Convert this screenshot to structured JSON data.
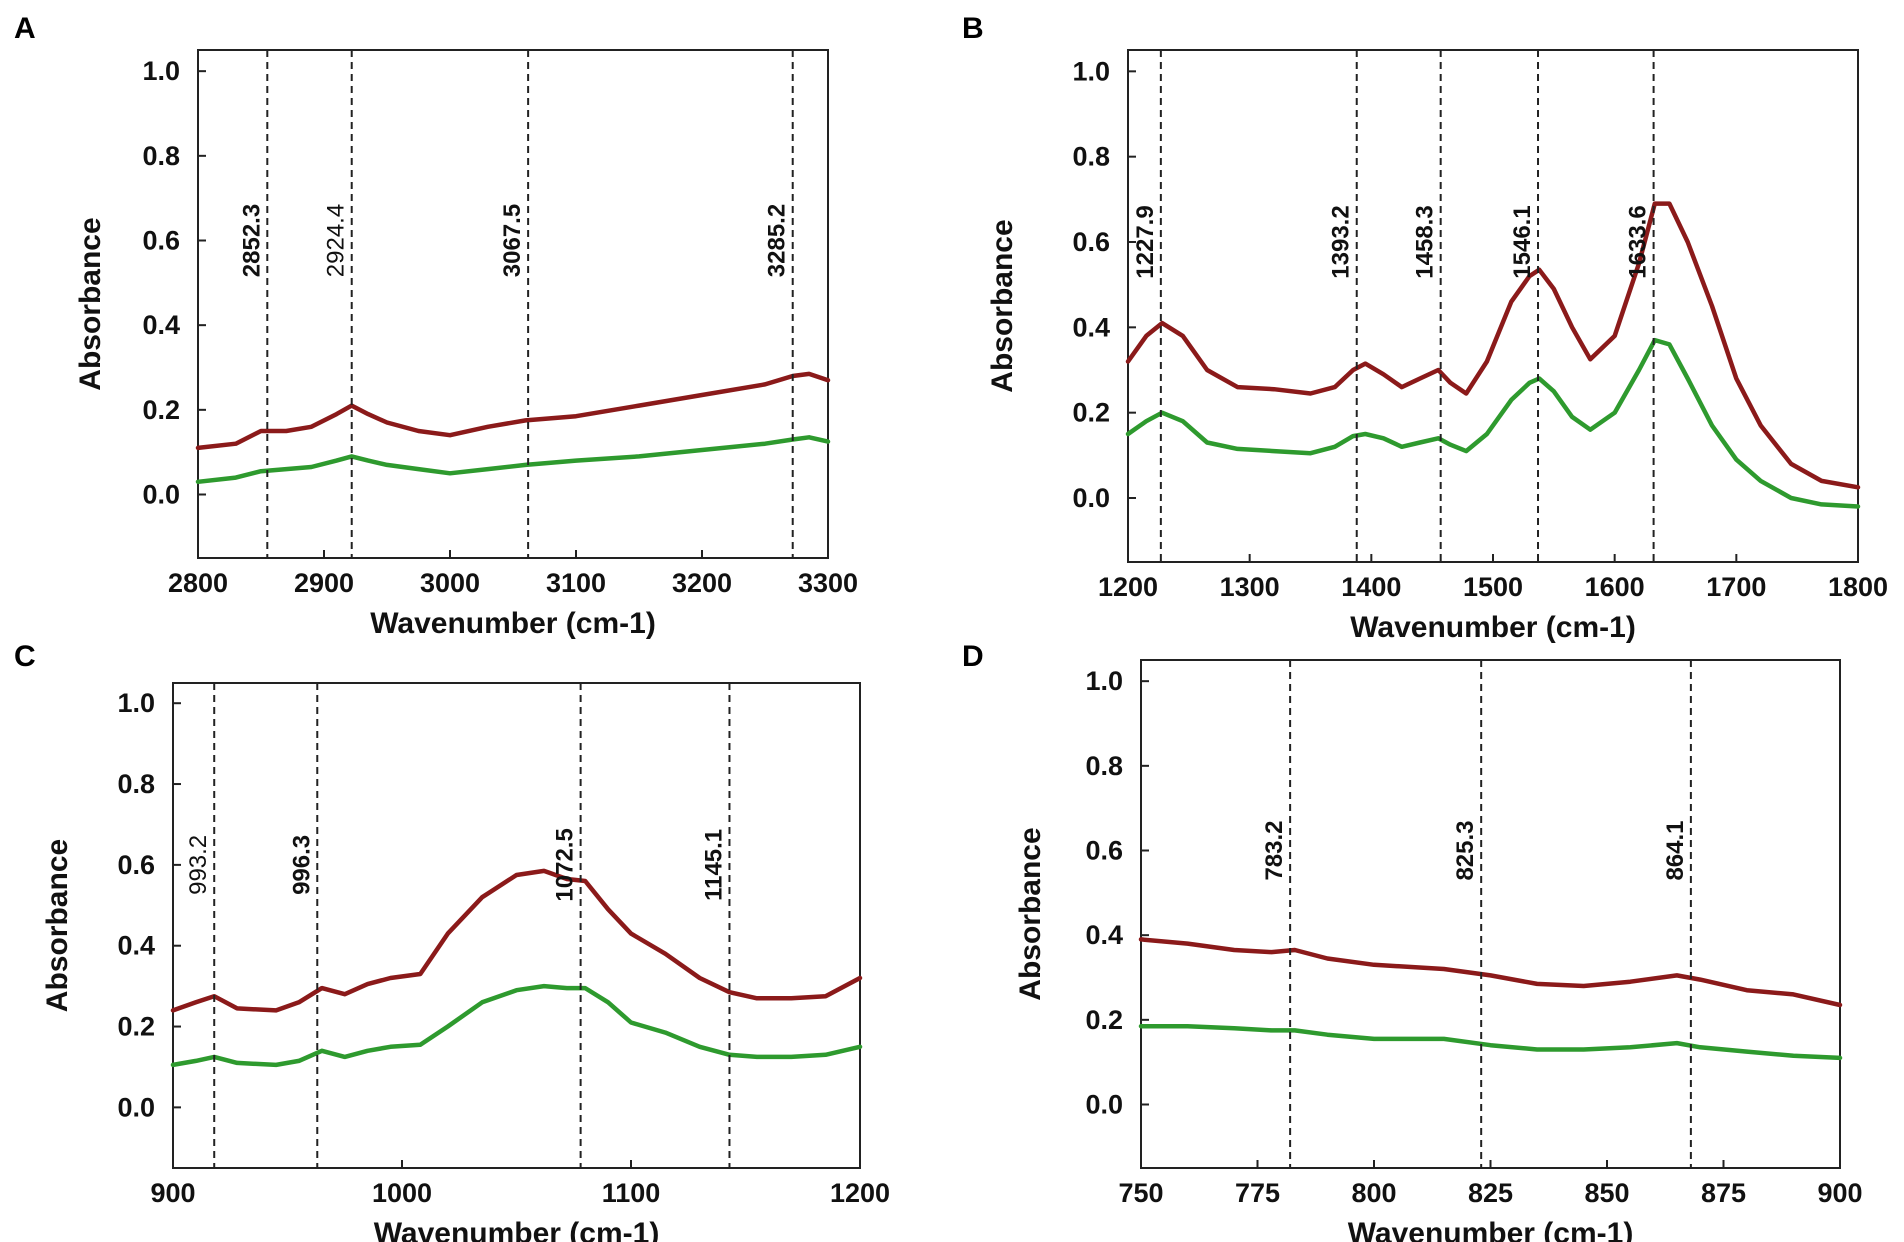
{
  "figure": {
    "background": "#ffffff"
  },
  "chart_data": [
    {
      "panel": "A",
      "type": "line",
      "title": "",
      "xlabel": "Wavenumber (cm-1)",
      "ylabel": "Absorbance",
      "xlim": [
        2800,
        3300
      ],
      "ylim": [
        -0.15,
        1.05
      ],
      "xticks": [
        2800,
        2900,
        3000,
        3100,
        3200,
        3300
      ],
      "yticks": [
        "0.0",
        "0.2",
        "0.4",
        "0.6",
        "0.8",
        "1.0"
      ],
      "grid": false,
      "peaks": [
        {
          "x": 2855,
          "label": "2852.3",
          "bold": true
        },
        {
          "x": 2922,
          "label": "2924.4",
          "bold": false
        },
        {
          "x": 3062,
          "label": "3067.5",
          "bold": true
        },
        {
          "x": 3272,
          "label": "3285.2",
          "bold": true
        }
      ],
      "series": [
        {
          "name": "red",
          "color": "#8b1a1a",
          "x": [
            2800,
            2830,
            2850,
            2870,
            2890,
            2910,
            2922,
            2935,
            2950,
            2975,
            3000,
            3030,
            3060,
            3100,
            3150,
            3200,
            3250,
            3272,
            3285,
            3300
          ],
          "y": [
            0.11,
            0.12,
            0.15,
            0.15,
            0.16,
            0.19,
            0.21,
            0.19,
            0.17,
            0.15,
            0.14,
            0.16,
            0.175,
            0.185,
            0.21,
            0.235,
            0.26,
            0.28,
            0.285,
            0.27
          ]
        },
        {
          "name": "green",
          "color": "#2e9a2e",
          "x": [
            2800,
            2830,
            2850,
            2870,
            2890,
            2910,
            2922,
            2935,
            2950,
            2975,
            3000,
            3030,
            3060,
            3100,
            3150,
            3200,
            3250,
            3272,
            3285,
            3300
          ],
          "y": [
            0.03,
            0.04,
            0.055,
            0.06,
            0.065,
            0.08,
            0.09,
            0.08,
            0.07,
            0.06,
            0.05,
            0.06,
            0.07,
            0.08,
            0.09,
            0.105,
            0.12,
            0.13,
            0.135,
            0.125
          ]
        }
      ]
    },
    {
      "panel": "B",
      "type": "line",
      "title": "",
      "xlabel": "Wavenumber (cm-1)",
      "ylabel": "Absorbance",
      "xlim": [
        1200,
        1800
      ],
      "ylim": [
        -0.15,
        1.05
      ],
      "xticks": [
        1200,
        1300,
        1400,
        1500,
        1600,
        1700,
        1800
      ],
      "yticks": [
        "0.0",
        "0.2",
        "0.4",
        "0.6",
        "0.8",
        "1.0"
      ],
      "grid": false,
      "peaks": [
        {
          "x": 1227,
          "label": "1227.9",
          "bold": true
        },
        {
          "x": 1388,
          "label": "1393.2",
          "bold": true
        },
        {
          "x": 1457,
          "label": "1458.3",
          "bold": true
        },
        {
          "x": 1537,
          "label": "1546.1",
          "bold": true
        },
        {
          "x": 1632,
          "label": "1633.6",
          "bold": true
        }
      ],
      "series": [
        {
          "name": "red",
          "color": "#8b1a1a",
          "x": [
            1200,
            1215,
            1228,
            1245,
            1265,
            1290,
            1320,
            1350,
            1370,
            1385,
            1395,
            1410,
            1425,
            1440,
            1455,
            1465,
            1478,
            1495,
            1515,
            1530,
            1538,
            1550,
            1565,
            1580,
            1600,
            1620,
            1633,
            1645,
            1660,
            1680,
            1700,
            1720,
            1745,
            1770,
            1800
          ],
          "y": [
            0.32,
            0.38,
            0.41,
            0.38,
            0.3,
            0.26,
            0.255,
            0.245,
            0.26,
            0.3,
            0.315,
            0.29,
            0.26,
            0.28,
            0.3,
            0.27,
            0.245,
            0.32,
            0.46,
            0.52,
            0.535,
            0.49,
            0.4,
            0.325,
            0.38,
            0.55,
            0.69,
            0.69,
            0.6,
            0.45,
            0.28,
            0.17,
            0.08,
            0.04,
            0.025
          ]
        },
        {
          "name": "green",
          "color": "#2e9a2e",
          "x": [
            1200,
            1215,
            1228,
            1245,
            1265,
            1290,
            1320,
            1350,
            1370,
            1385,
            1395,
            1410,
            1425,
            1440,
            1455,
            1465,
            1478,
            1495,
            1515,
            1530,
            1538,
            1550,
            1565,
            1580,
            1600,
            1620,
            1633,
            1645,
            1660,
            1680,
            1700,
            1720,
            1745,
            1770,
            1800
          ],
          "y": [
            0.15,
            0.18,
            0.2,
            0.18,
            0.13,
            0.115,
            0.11,
            0.105,
            0.12,
            0.145,
            0.15,
            0.14,
            0.12,
            0.13,
            0.14,
            0.125,
            0.11,
            0.15,
            0.23,
            0.27,
            0.28,
            0.25,
            0.19,
            0.16,
            0.2,
            0.3,
            0.37,
            0.36,
            0.28,
            0.17,
            0.09,
            0.04,
            0.0,
            -0.015,
            -0.02
          ]
        }
      ]
    },
    {
      "panel": "C",
      "type": "line",
      "title": "",
      "xlabel": "Wavenumber (cm-1)",
      "ylabel": "Absorbance",
      "xlim": [
        900,
        1200
      ],
      "ylim": [
        -0.15,
        1.05
      ],
      "xticks": [
        900,
        1000,
        1100,
        1200
      ],
      "yticks": [
        "0.0",
        "0.2",
        "0.4",
        "0.6",
        "0.8",
        "1.0"
      ],
      "grid": false,
      "peaks": [
        {
          "x": 918,
          "label": "993.2",
          "bold": false
        },
        {
          "x": 963,
          "label": "996.3",
          "bold": true
        },
        {
          "x": 1078,
          "label": "1072.5",
          "bold": true
        },
        {
          "x": 1143,
          "label": "1145.1",
          "bold": true
        }
      ],
      "series": [
        {
          "name": "red",
          "color": "#8b1a1a",
          "x": [
            900,
            910,
            918,
            928,
            945,
            955,
            965,
            975,
            985,
            995,
            1008,
            1020,
            1035,
            1050,
            1062,
            1072,
            1080,
            1090,
            1100,
            1115,
            1130,
            1143,
            1155,
            1170,
            1185,
            1200
          ],
          "y": [
            0.24,
            0.26,
            0.275,
            0.245,
            0.24,
            0.26,
            0.295,
            0.28,
            0.305,
            0.32,
            0.33,
            0.43,
            0.52,
            0.575,
            0.585,
            0.565,
            0.56,
            0.49,
            0.43,
            0.38,
            0.32,
            0.285,
            0.27,
            0.27,
            0.275,
            0.32
          ]
        },
        {
          "name": "green",
          "color": "#2e9a2e",
          "x": [
            900,
            910,
            918,
            928,
            945,
            955,
            965,
            975,
            985,
            995,
            1008,
            1020,
            1035,
            1050,
            1062,
            1072,
            1080,
            1090,
            1100,
            1115,
            1130,
            1143,
            1155,
            1170,
            1185,
            1200
          ],
          "y": [
            0.105,
            0.115,
            0.125,
            0.11,
            0.105,
            0.115,
            0.14,
            0.125,
            0.14,
            0.15,
            0.155,
            0.2,
            0.26,
            0.29,
            0.3,
            0.295,
            0.295,
            0.26,
            0.21,
            0.185,
            0.15,
            0.13,
            0.125,
            0.125,
            0.13,
            0.15
          ]
        }
      ]
    },
    {
      "panel": "D",
      "type": "line",
      "title": "",
      "xlabel": "Wavenumber (cm-1)",
      "ylabel": "Absorbance",
      "xlim": [
        750,
        900
      ],
      "ylim": [
        -0.15,
        1.05
      ],
      "xticks": [
        750,
        775,
        800,
        825,
        850,
        875,
        900
      ],
      "yticks": [
        "0.0",
        "0.2",
        "0.4",
        "0.6",
        "0.8",
        "1.0"
      ],
      "grid": false,
      "peaks": [
        {
          "x": 782,
          "label": "783.2",
          "bold": true
        },
        {
          "x": 823,
          "label": "825.3",
          "bold": true
        },
        {
          "x": 868,
          "label": "864.1",
          "bold": true
        }
      ],
      "series": [
        {
          "name": "red",
          "color": "#8b1a1a",
          "x": [
            750,
            760,
            770,
            778,
            783,
            790,
            800,
            815,
            825,
            835,
            845,
            855,
            865,
            870,
            880,
            890,
            900
          ],
          "y": [
            0.39,
            0.38,
            0.365,
            0.36,
            0.365,
            0.345,
            0.33,
            0.32,
            0.305,
            0.285,
            0.28,
            0.29,
            0.305,
            0.295,
            0.27,
            0.26,
            0.235
          ]
        },
        {
          "name": "green",
          "color": "#2e9a2e",
          "x": [
            750,
            760,
            770,
            778,
            783,
            790,
            800,
            815,
            825,
            835,
            845,
            855,
            865,
            870,
            880,
            890,
            900
          ],
          "y": [
            0.185,
            0.185,
            0.18,
            0.175,
            0.175,
            0.165,
            0.155,
            0.155,
            0.14,
            0.13,
            0.13,
            0.135,
            0.145,
            0.135,
            0.125,
            0.115,
            0.11
          ]
        }
      ]
    }
  ]
}
